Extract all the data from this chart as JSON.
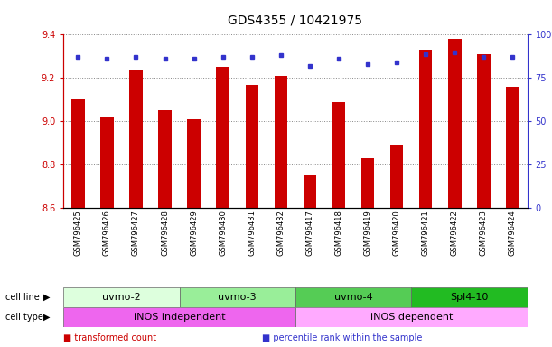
{
  "title": "GDS4355 / 10421975",
  "samples": [
    "GSM796425",
    "GSM796426",
    "GSM796427",
    "GSM796428",
    "GSM796429",
    "GSM796430",
    "GSM796431",
    "GSM796432",
    "GSM796417",
    "GSM796418",
    "GSM796419",
    "GSM796420",
    "GSM796421",
    "GSM796422",
    "GSM796423",
    "GSM796424"
  ],
  "transformed_count": [
    9.1,
    9.02,
    9.24,
    9.05,
    9.01,
    9.25,
    9.17,
    9.21,
    8.75,
    9.09,
    8.83,
    8.89,
    9.33,
    9.38,
    9.31,
    9.16
  ],
  "percentile_rank": [
    87,
    86,
    87,
    86,
    86,
    87,
    87,
    88,
    82,
    86,
    83,
    84,
    89,
    90,
    87,
    87
  ],
  "ylim_left": [
    8.6,
    9.4
  ],
  "ylim_right": [
    0,
    100
  ],
  "yticks_left": [
    8.6,
    8.8,
    9.0,
    9.2,
    9.4
  ],
  "yticks_right": [
    0,
    25,
    50,
    75,
    100
  ],
  "bar_color": "#cc0000",
  "dot_color": "#3333cc",
  "bar_bottom": 8.6,
  "cell_lines": [
    {
      "label": "uvmo-2",
      "start": 0,
      "end": 3,
      "color": "#ddffdd"
    },
    {
      "label": "uvmo-3",
      "start": 4,
      "end": 7,
      "color": "#99ee99"
    },
    {
      "label": "uvmo-4",
      "start": 8,
      "end": 11,
      "color": "#55cc55"
    },
    {
      "label": "Spl4-10",
      "start": 12,
      "end": 15,
      "color": "#22bb22"
    }
  ],
  "cell_types": [
    {
      "label": "iNOS independent",
      "start": 0,
      "end": 7,
      "color": "#ee66ee"
    },
    {
      "label": "iNOS dependent",
      "start": 8,
      "end": 15,
      "color": "#ffaaff"
    }
  ],
  "legend_items": [
    {
      "label": "transformed count",
      "color": "#cc0000"
    },
    {
      "label": "percentile rank within the sample",
      "color": "#3333cc"
    }
  ],
  "grid_color": "#888888",
  "background_color": "#ffffff",
  "tick_label_color_left": "#cc0000",
  "tick_label_color_right": "#3333cc",
  "title_fontsize": 10,
  "axis_fontsize": 7,
  "sample_fontsize": 6,
  "cell_label_fontsize": 8,
  "row_label_fontsize": 7,
  "legend_fontsize": 7
}
